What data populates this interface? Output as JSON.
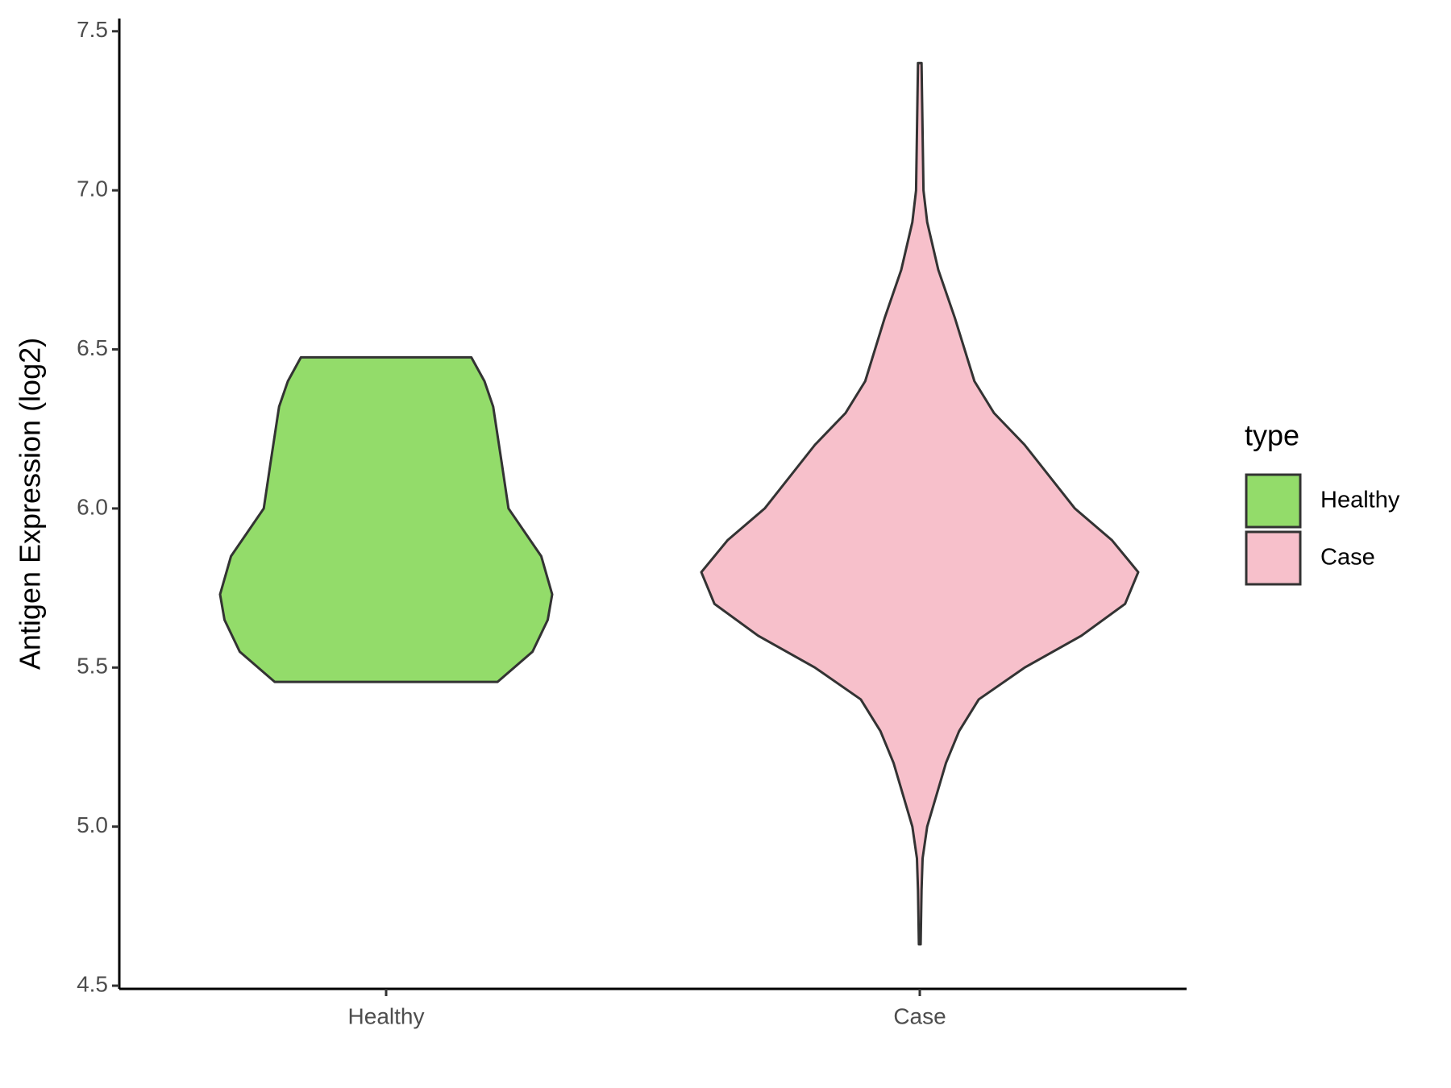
{
  "chart_data": {
    "type": "violin",
    "y_label": "Antigen Expression (log2)",
    "categories": [
      "Healthy",
      "Case"
    ],
    "legend_title": "type",
    "legend_position": "right",
    "ylim": [
      4.49,
      7.54
    ],
    "yticks": [
      {
        "value": 4.5,
        "label": "4.5"
      },
      {
        "value": 5,
        "label": "5.0"
      },
      {
        "value": 5.5,
        "label": "5.5"
      },
      {
        "value": 6,
        "label": "6.0"
      },
      {
        "value": 6.5,
        "label": "6.5"
      },
      {
        "value": 7,
        "label": "7.0"
      },
      {
        "value": 7.5,
        "label": "7.5"
      }
    ],
    "series": [
      {
        "name": "Healthy",
        "color": "#93dc6a",
        "y": [
          5.455,
          5.55,
          5.65,
          5.73,
          5.85,
          6.0,
          6.14,
          6.32,
          6.4,
          6.475
        ],
        "density": [
          0.51,
          0.67,
          0.74,
          0.76,
          0.71,
          0.56,
          0.53,
          0.49,
          0.45,
          0.39
        ]
      },
      {
        "name": "Case",
        "color": "#f7c0cb",
        "y": [
          4.63,
          4.8,
          4.9,
          5.0,
          5.2,
          5.3,
          5.4,
          5.5,
          5.6,
          5.7,
          5.8,
          5.9,
          6.0,
          6.2,
          6.3,
          6.4,
          6.6,
          6.75,
          6.9,
          7.0,
          7.4
        ],
        "density": [
          0.004,
          0.008,
          0.013,
          0.034,
          0.12,
          0.18,
          0.27,
          0.48,
          0.74,
          0.94,
          1.0,
          0.88,
          0.71,
          0.48,
          0.34,
          0.25,
          0.16,
          0.085,
          0.034,
          0.017,
          0.008
        ]
      }
    ]
  }
}
